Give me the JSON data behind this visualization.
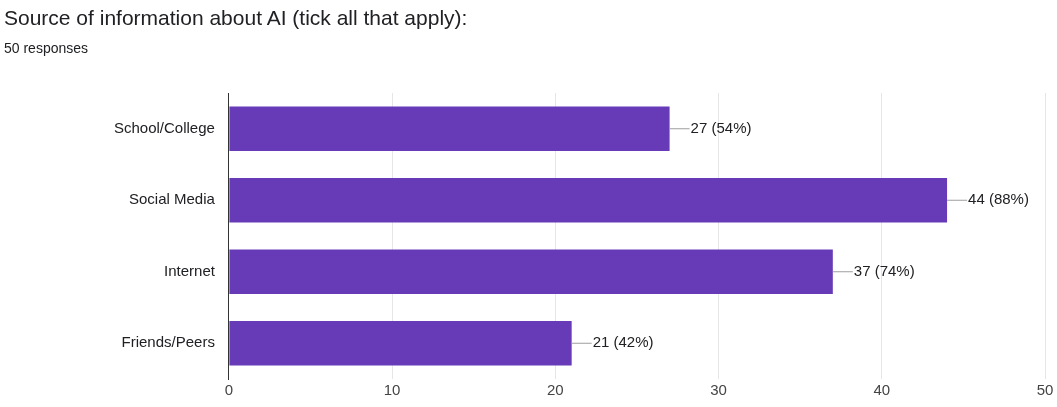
{
  "chart_data": {
    "type": "bar",
    "orientation": "horizontal",
    "title": "Source of information about AI (tick all that apply):",
    "subtitle": "50 responses",
    "categories": [
      "School/College",
      "Social Media",
      "Internet",
      "Friends/Peers"
    ],
    "values": [
      27,
      44,
      37,
      21
    ],
    "color": "#673ab7",
    "value_labels": [
      "27 (54%)",
      "44 (88%)",
      "37 (74%)",
      "21 (42%)"
    ],
    "xlim": [
      0,
      50
    ],
    "xticks": [
      0,
      10,
      20,
      30,
      40,
      50
    ],
    "grid": "x",
    "legend": false
  }
}
